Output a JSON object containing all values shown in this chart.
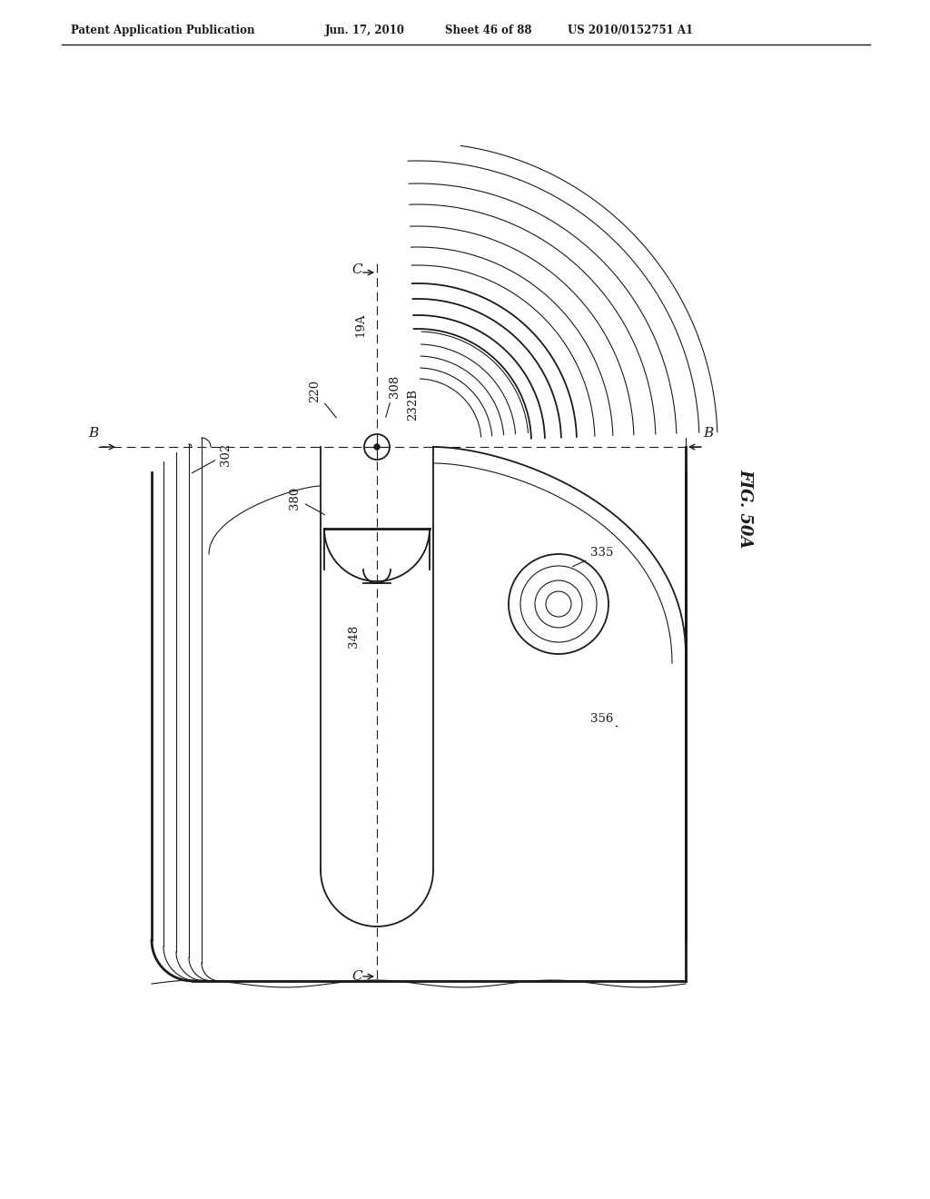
{
  "bg_color": "#ffffff",
  "line_color": "#1a1a1a",
  "header_text": "Patent Application Publication",
  "header_date": "Jun. 17, 2010",
  "header_sheet": "Sheet 46 of 88",
  "header_patent": "US 2010/0152751 A1",
  "fig_label": "FIG. 50A"
}
